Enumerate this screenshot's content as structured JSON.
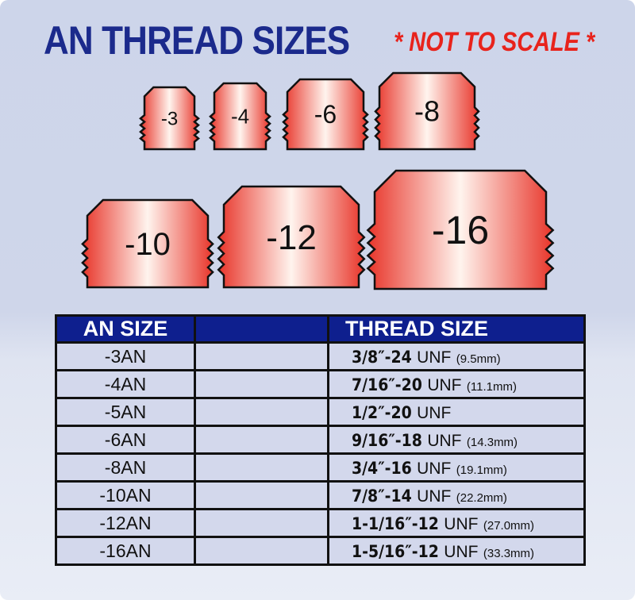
{
  "title": "AN THREAD SIZES",
  "note": "* NOT TO SCALE *",
  "fittings": [
    "-3",
    "-4",
    "-6",
    "-8",
    "-10",
    "-12",
    "-16"
  ],
  "colors": {
    "title": "#1b2a8c",
    "note": "#e8231c",
    "header": "#0e1f8e",
    "fitting_edge": "#e8352a",
    "fitting_center": "#ffffff"
  },
  "table": {
    "headers": [
      "AN SIZE",
      "",
      "THREAD SIZE"
    ],
    "rows": [
      {
        "an": "-3AN",
        "thread": "3/8″-24",
        "unit": "UNF",
        "mm": "(9.5mm)"
      },
      {
        "an": "-4AN",
        "thread": "7/16″-20",
        "unit": "UNF",
        "mm": "(11.1mm)"
      },
      {
        "an": "-5AN",
        "thread": "1/2″-20",
        "unit": "UNF",
        "mm": ""
      },
      {
        "an": "-6AN",
        "thread": "9/16″-18",
        "unit": "UNF",
        "mm": "(14.3mm)"
      },
      {
        "an": "-8AN",
        "thread": "3/4″-16",
        "unit": "UNF",
        "mm": "(19.1mm)"
      },
      {
        "an": "-10AN",
        "thread": "7/8″-14",
        "unit": "UNF",
        "mm": "(22.2mm)"
      },
      {
        "an": "-12AN",
        "thread": "1-1/16″-12",
        "unit": "UNF",
        "mm": "(27.0mm)"
      },
      {
        "an": "-16AN",
        "thread": "1-5/16″-12",
        "unit": "UNF",
        "mm": "(33.3mm)"
      }
    ]
  }
}
